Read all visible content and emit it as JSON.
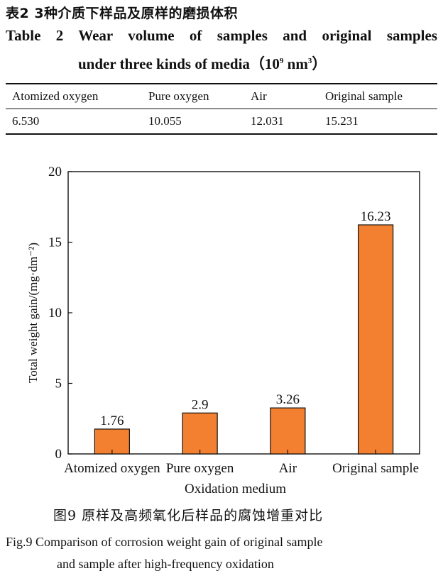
{
  "table": {
    "caption_cn": "表2   3种介质下样品及原样的磨损体积",
    "caption_en_line1": "Table 2   Wear volume of samples and original samples",
    "caption_en_line2_main": "under three kinds of media（10",
    "caption_en_line2_exp": "9",
    "caption_en_line2_unit": " nm",
    "caption_en_line2_unit_exp": "3",
    "caption_en_line2_close": "）",
    "headers": [
      "Atomized oxygen",
      "Pure oxygen",
      "Air",
      "Original sample"
    ],
    "values": [
      "6.530",
      "10.055",
      "12.031",
      "15.231"
    ]
  },
  "chart_data": {
    "type": "bar",
    "categories": [
      "Atomized oxygen",
      "Pure oxygen",
      "Air",
      "Original sample"
    ],
    "values": [
      1.76,
      2.9,
      3.26,
      16.23
    ],
    "value_labels": [
      "1.76",
      "2.9",
      "3.26",
      "16.23"
    ],
    "xlabel": "Oxidation medium",
    "ylabel": "Total weight gain/(mg·dm⁻²)",
    "ylim": [
      0,
      20
    ],
    "yticks": [
      0,
      5,
      10,
      15,
      20
    ],
    "bar_color": "#f28030",
    "grid": false,
    "legend": "none"
  },
  "figure": {
    "caption_cn": "图9   原样及高频氧化后样品的腐蚀增重对比",
    "caption_en_line1": "Fig.9   Comparison of corrosion weight gain of original sample",
    "caption_en_line2": "and sample after high-frequency oxidation"
  }
}
